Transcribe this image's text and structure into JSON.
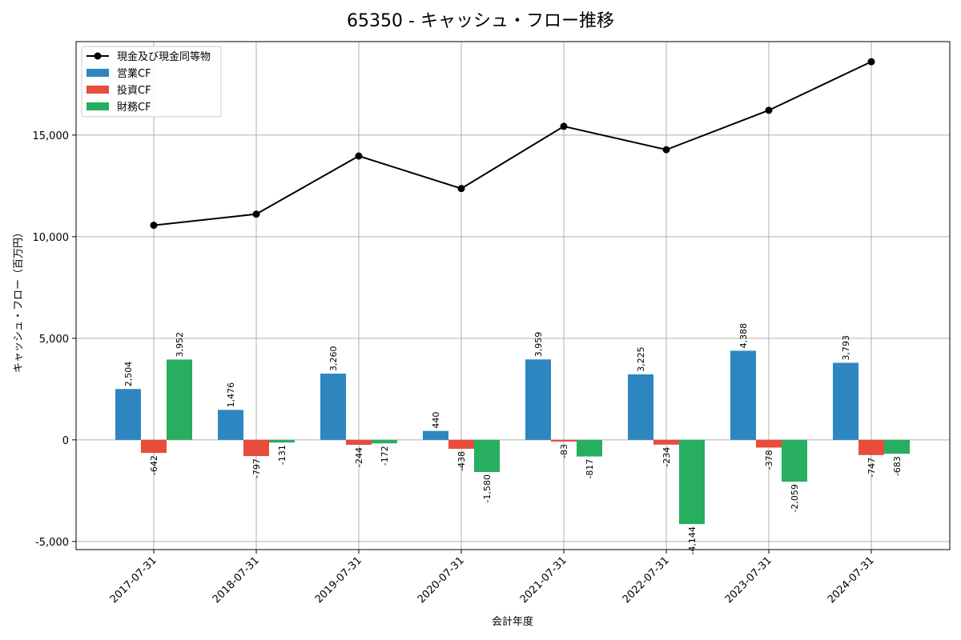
{
  "chart_data": {
    "type": "bar",
    "title": "65350 - キャッシュ・フロー推移",
    "xlabel": "会計年度",
    "ylabel": "キャッシュ・フロー（百万円）",
    "ylim": [
      -5400,
      19600
    ],
    "yticks": [
      -5000,
      0,
      5000,
      10000,
      15000
    ],
    "ytick_labels": [
      "-5,000",
      "0",
      "5,000",
      "10,000",
      "15,000"
    ],
    "categories": [
      "2017-07-31",
      "2018-07-31",
      "2019-07-31",
      "2020-07-31",
      "2021-07-31",
      "2022-07-31",
      "2023-07-31",
      "2024-07-31"
    ],
    "series": [
      {
        "name": "営業CF",
        "color": "#2e86c1",
        "values": [
          2504,
          1476,
          3260,
          440,
          3959,
          3225,
          4388,
          3793
        ],
        "labels": [
          "2,504",
          "1,476",
          "3,260",
          "440",
          "3,959",
          "3,225",
          "4,388",
          "3,793"
        ]
      },
      {
        "name": "投資CF",
        "color": "#e74c3c",
        "values": [
          -642,
          -797,
          -244,
          -438,
          -83,
          -234,
          -378,
          -747
        ],
        "labels": [
          "-642",
          "-797",
          "-244",
          "-438",
          "-83",
          "-234",
          "-378",
          "-747"
        ]
      },
      {
        "name": "財務CF",
        "color": "#27ae60",
        "values": [
          3952,
          -131,
          -172,
          -1580,
          -817,
          -4144,
          -2059,
          -683
        ],
        "labels": [
          "3,952",
          "-131",
          "-172",
          "-1,580",
          "-817",
          "-4,144",
          "-2,059",
          "-683"
        ]
      }
    ],
    "line": {
      "name": "現金及び現金同等物",
      "color": "#000000",
      "values": [
        10560,
        11110,
        13970,
        12370,
        15430,
        14280,
        16220,
        18610
      ]
    },
    "legend_order": [
      "現金及び現金同等物",
      "営業CF",
      "投資CF",
      "財務CF"
    ],
    "legend_position": "top-left",
    "grid": true
  }
}
